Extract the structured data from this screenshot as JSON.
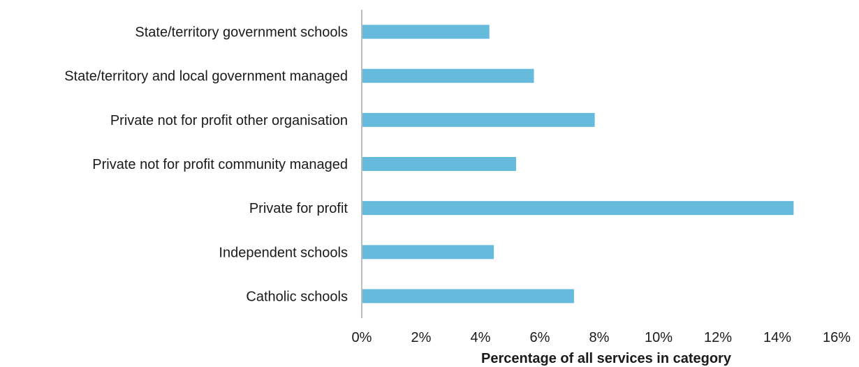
{
  "chart_data": {
    "type": "bar",
    "orientation": "horizontal",
    "title": "",
    "xlabel": "Percentage of all services in category",
    "ylabel": "",
    "categories": [
      "State/territory government schools",
      "State/territory and local government managed",
      "Private not for profit other organisation",
      "Private not for profit community managed",
      "Private for profit",
      "Independent schools",
      "Catholic schools"
    ],
    "values": [
      4.3,
      5.8,
      7.85,
      5.2,
      14.55,
      4.45,
      7.15
    ],
    "xlim": [
      0,
      16
    ],
    "xticks": [
      0,
      2,
      4,
      6,
      8,
      10,
      12,
      14,
      16
    ],
    "xtick_labels": [
      "0%",
      "2%",
      "4%",
      "6%",
      "8%",
      "10%",
      "12%",
      "14%",
      "16%"
    ],
    "grid": false,
    "legend": "none",
    "colors": {
      "bar": "#66bbdd",
      "axis": "#a6a6a6"
    }
  }
}
